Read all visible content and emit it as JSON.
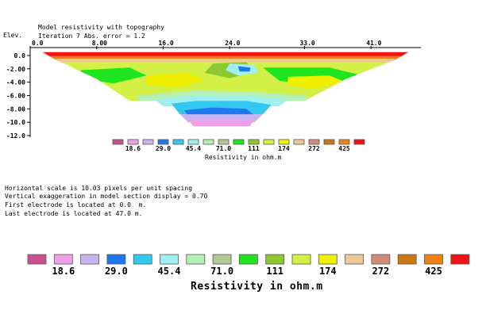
{
  "header": {
    "title": "Model resistivity with topography",
    "subtitle": "Iteration 7 Abs. error = 1.2",
    "y_axis_label": "Elev."
  },
  "chart_data": {
    "type": "heatmap",
    "title": "Model resistivity with topography",
    "subtitle": "Iteration 7 Abs. error = 1.2",
    "ylabel": "Elev.",
    "x_ticks": [
      "0.0",
      "8.00",
      "16.0",
      "24.0",
      "33.0",
      "41.0"
    ],
    "x_tick_values": [
      0,
      8,
      16,
      24,
      33,
      41
    ],
    "y_ticks": [
      "0.0",
      "-2.00",
      "-4.00",
      "-6.00",
      "-8.00",
      "-10.0",
      "-12.0"
    ],
    "y_tick_values": [
      0,
      -2,
      -4,
      -6,
      -8,
      -10,
      -12
    ],
    "xlim": [
      0,
      47
    ],
    "ylim": [
      -12,
      0.5
    ],
    "grid": false,
    "legend_placement": "bottom",
    "color_scale": {
      "label": "Resistivity in ohm.m",
      "labels": [
        "18.6",
        "29.0",
        "45.4",
        "71.0",
        "111",
        "174",
        "272",
        "425"
      ],
      "colors": [
        "#c8508c",
        "#f0a0e6",
        "#c8b4f0",
        "#1e78f0",
        "#32c8f0",
        "#a0f0f0",
        "#b4f0b4",
        "#b4c896",
        "#1ee61e",
        "#8cc832",
        "#d2f046",
        "#f0f000",
        "#f0c896",
        "#d28c78",
        "#c87814",
        "#f08214",
        "#f01414"
      ]
    },
    "regions": [
      {
        "color_index": 16,
        "points": [
          [
            1.5,
            0.6
          ],
          [
            45.5,
            0.6
          ],
          [
            45.5,
            -0.4
          ],
          [
            1.5,
            -0.4
          ]
        ]
      },
      {
        "color_index": 15,
        "points": [
          [
            2,
            -0.1
          ],
          [
            45,
            -0.1
          ],
          [
            44,
            -0.9
          ],
          [
            3,
            -0.9
          ]
        ]
      },
      {
        "color_index": 12,
        "points": [
          [
            3,
            -0.5
          ],
          [
            44,
            -0.5
          ],
          [
            43,
            -1.3
          ],
          [
            4,
            -1.3
          ]
        ]
      },
      {
        "color_index": 10,
        "points": [
          [
            4,
            -1.0
          ],
          [
            43,
            -1.0
          ],
          [
            40,
            -4
          ],
          [
            36,
            -6.8
          ],
          [
            12,
            -6.8
          ],
          [
            8,
            -4
          ]
        ]
      },
      {
        "color_index": 8,
        "points": [
          [
            6,
            -2.2
          ],
          [
            12,
            -1.8
          ],
          [
            14,
            -3.0
          ],
          [
            10,
            -4.2
          ],
          [
            7,
            -3.6
          ]
        ]
      },
      {
        "color_index": 8,
        "points": [
          [
            28,
            -1.8
          ],
          [
            36,
            -1.8
          ],
          [
            40,
            -3.0
          ],
          [
            36,
            -4.5
          ],
          [
            30,
            -3.8
          ]
        ]
      },
      {
        "color_index": 11,
        "points": [
          [
            14,
            -3.0
          ],
          [
            19,
            -2.6
          ],
          [
            21,
            -3.6
          ],
          [
            18,
            -4.8
          ],
          [
            14,
            -4.4
          ]
        ]
      },
      {
        "color_index": 11,
        "points": [
          [
            31,
            -3.2
          ],
          [
            36,
            -3.0
          ],
          [
            38,
            -4.0
          ],
          [
            34,
            -5.0
          ],
          [
            31,
            -4.4
          ]
        ]
      },
      {
        "color_index": 9,
        "points": [
          [
            22,
            -1.2
          ],
          [
            26,
            -1.0
          ],
          [
            27,
            -2.4
          ],
          [
            24,
            -3.4
          ],
          [
            21,
            -2.6
          ]
        ]
      },
      {
        "color_index": 5,
        "points": [
          [
            24,
            -1.2
          ],
          [
            27,
            -1.4
          ],
          [
            27.5,
            -2.6
          ],
          [
            25,
            -3.0
          ],
          [
            23.5,
            -2.2
          ]
        ]
      },
      {
        "color_index": 3,
        "points": [
          [
            25,
            -1.6
          ],
          [
            26.5,
            -1.8
          ],
          [
            26.4,
            -2.4
          ],
          [
            25.2,
            -2.4
          ]
        ]
      },
      {
        "color_index": 6,
        "points": [
          [
            13,
            -6.0
          ],
          [
            20,
            -5.2
          ],
          [
            27,
            -5.4
          ],
          [
            33,
            -6.0
          ],
          [
            34,
            -6.8
          ],
          [
            13,
            -6.8
          ]
        ]
      },
      {
        "color_index": 5,
        "points": [
          [
            15,
            -6.6
          ],
          [
            20,
            -6.0
          ],
          [
            26,
            -6.0
          ],
          [
            31,
            -6.6
          ],
          [
            30,
            -7.6
          ],
          [
            16,
            -7.6
          ]
        ]
      },
      {
        "color_index": 4,
        "points": [
          [
            17,
            -7.2
          ],
          [
            20,
            -6.8
          ],
          [
            26,
            -6.8
          ],
          [
            29,
            -7.4
          ],
          [
            28,
            -8.8
          ],
          [
            18,
            -8.8
          ]
        ]
      },
      {
        "color_index": 3,
        "points": [
          [
            18.5,
            -8.2
          ],
          [
            22,
            -7.8
          ],
          [
            26,
            -8.0
          ],
          [
            27,
            -9.0
          ],
          [
            19,
            -9.0
          ]
        ]
      },
      {
        "color_index": 2,
        "points": [
          [
            18,
            -8.8
          ],
          [
            28,
            -8.8
          ],
          [
            27,
            -10.0
          ],
          [
            19,
            -10.0
          ]
        ]
      },
      {
        "color_index": 1,
        "points": [
          [
            19,
            -9.6
          ],
          [
            27,
            -9.6
          ],
          [
            26.4,
            -10.6
          ],
          [
            19.6,
            -10.6
          ]
        ]
      }
    ]
  },
  "info": {
    "lines": [
      "Horizontal scale is 10.03 pixels per unit spacing",
      "Vertical exaggeration in model section display = 0.70",
      "First electrode is located at 0.0  m.",
      "Last electrode is located at 47.0 m."
    ]
  },
  "legend_large": {
    "label": "Resistivity in ohm.m",
    "labels": [
      "18.6",
      "29.0",
      "45.4",
      "71.0",
      "111",
      "174",
      "272",
      "425"
    ]
  }
}
